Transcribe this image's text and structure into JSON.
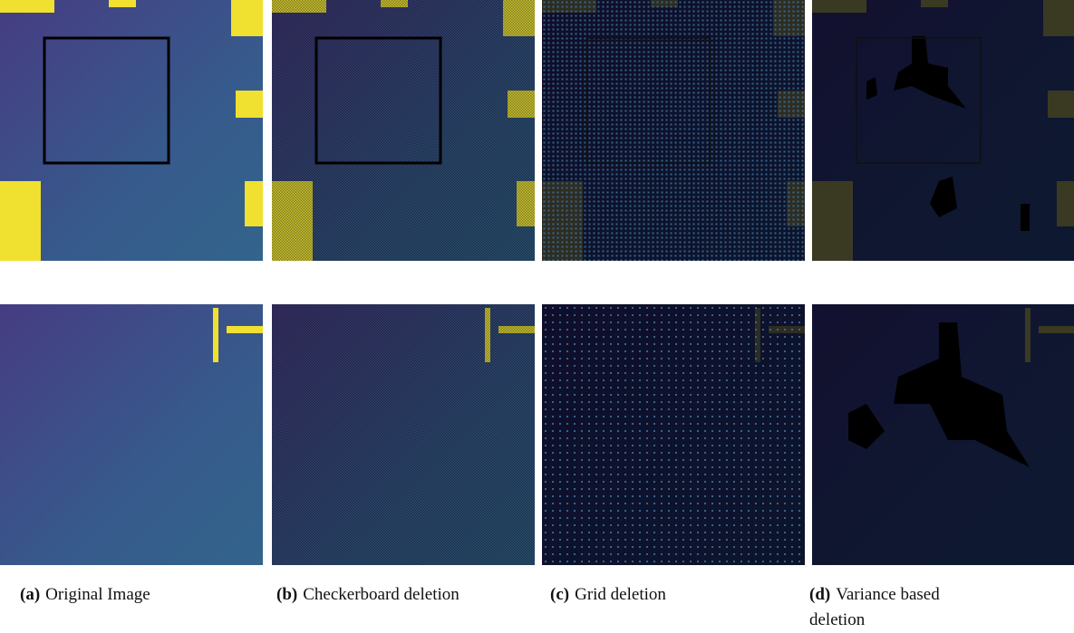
{
  "figure": {
    "captions": [
      {
        "label": "(a)",
        "text": "Original Image"
      },
      {
        "label": "(b)",
        "text": "Checkerboard deletion"
      },
      {
        "label": "(c)",
        "text": "Grid deletion"
      },
      {
        "label": "(d)",
        "text": "Variance based deletion"
      }
    ]
  }
}
